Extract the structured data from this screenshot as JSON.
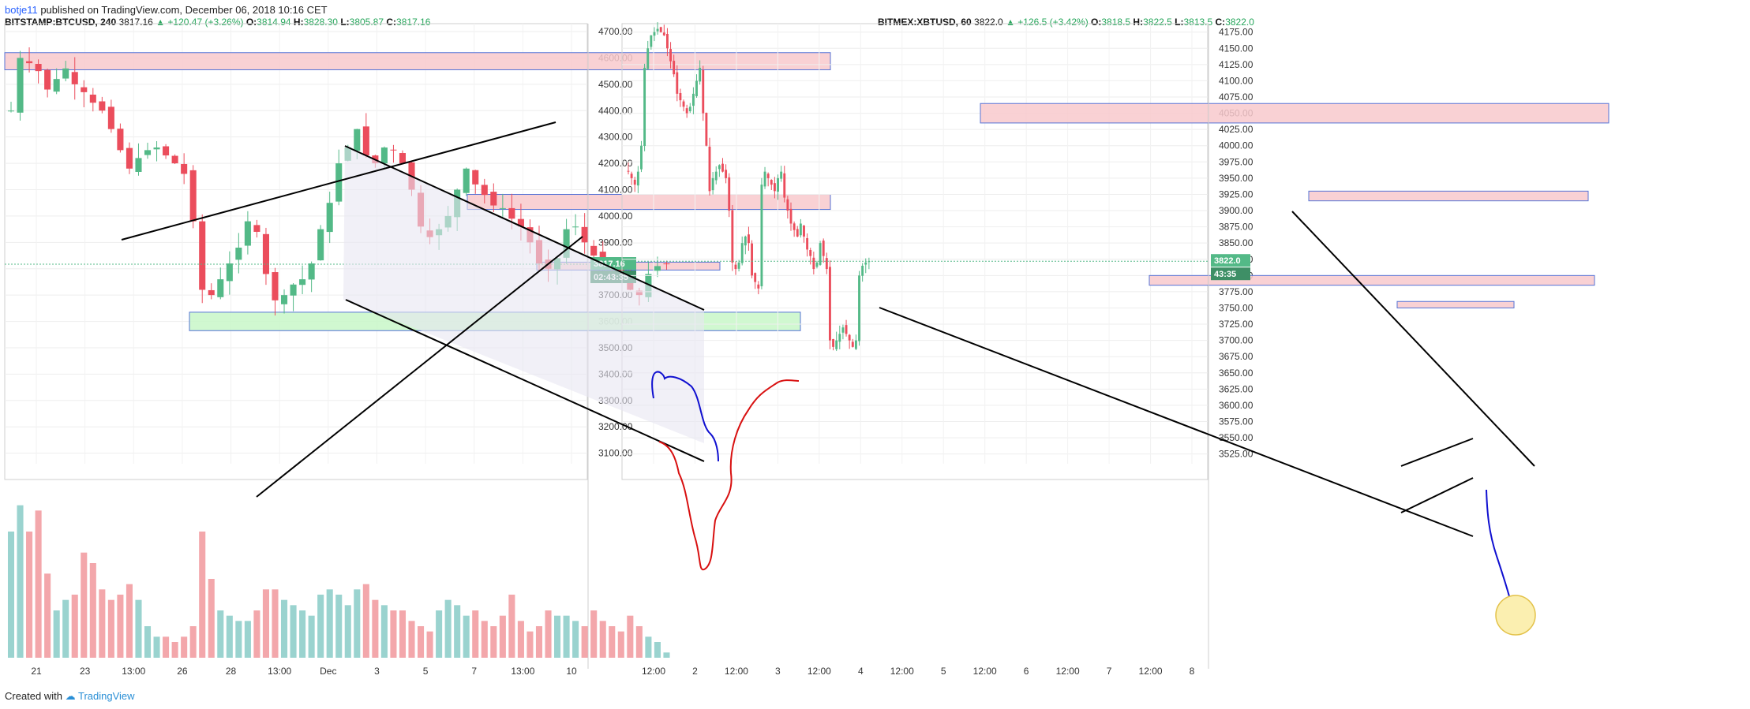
{
  "header": {
    "user": "botje11",
    "published": "published on TradingView.com, December 06, 2018 10:16 CET"
  },
  "footer": {
    "created_with": "Created with",
    "brand": "TradingView"
  },
  "colors": {
    "up": "#53b987",
    "down": "#eb4d5c",
    "zone_red": "#f8c9cc",
    "zone_green": "#c8f7c8",
    "zone_border": "#5573d6",
    "wedge": "#e7e6f2",
    "line_black": "#000000",
    "blue_path": "#1010d0",
    "red_path": "#d81010",
    "highlight": "#fbefb0"
  },
  "chart_data": [
    {
      "type": "candlestick",
      "symbol": "BITSTAMP:BTCUSD, 240",
      "last": "3817.16",
      "change": "▲ +120.47 (+3.26%)",
      "open": "3814.94",
      "high": "3828.30",
      "low": "3805.87",
      "close": "3817.16",
      "last_value": 3817.16,
      "price_tag": "3817.16",
      "time_tag": "02:43:35",
      "y_ticks": [
        "4700.00",
        "4600.00",
        "4500.00",
        "4400.00",
        "4300.00",
        "4200.00",
        "4100.00",
        "4000.00",
        "3900.00",
        "3800.00",
        "3700.00",
        "3600.00",
        "3500.00",
        "3400.00",
        "3300.00",
        "3200.00",
        "3100.00"
      ],
      "x_ticks": [
        "21",
        "23",
        "13:00",
        "26",
        "28",
        "13:00",
        "Dec",
        "3",
        "5",
        "7",
        "13:00",
        "10"
      ],
      "ylim": [
        3060,
        4730
      ],
      "zones": [
        {
          "color": "red",
          "y0": 4555,
          "y1": 4620
        },
        {
          "color": "red",
          "y0": 4025,
          "y1": 4082
        },
        {
          "color": "red",
          "y0": 3795,
          "y1": 3825
        },
        {
          "color": "green",
          "y0": 3565,
          "y1": 3635
        }
      ],
      "trend": [
        4400,
        4600,
        4580,
        4550,
        4480,
        4520,
        4560,
        4500,
        4470,
        4430,
        4400,
        4330,
        4250,
        4180,
        4220,
        4250,
        4260,
        4230,
        4200,
        4160,
        3980,
        3720,
        3700,
        3760,
        3820,
        3880,
        3980,
        3940,
        3780,
        3680,
        3700,
        3740,
        3760,
        3820,
        3950,
        4050,
        4200,
        4260,
        4330,
        4230,
        4200,
        4260,
        4250,
        4200,
        4100,
        3960,
        3920,
        3950,
        4000,
        4100,
        4180,
        4120,
        4080,
        4040,
        4030,
        3990,
        3960,
        3900,
        3820,
        3800,
        3840,
        3950,
        3960,
        3900,
        3850,
        3820,
        3800,
        3760,
        3720,
        3700,
        3780,
        3810,
        3817
      ],
      "volume": [
        240,
        290,
        240,
        280,
        160,
        90,
        110,
        120,
        200,
        180,
        130,
        110,
        120,
        140,
        110,
        60,
        40,
        40,
        30,
        40,
        60,
        240,
        150,
        90,
        80,
        70,
        70,
        90,
        130,
        130,
        110,
        100,
        90,
        80,
        120,
        130,
        120,
        100,
        130,
        140,
        110,
        100,
        90,
        90,
        70,
        60,
        50,
        90,
        110,
        100,
        80,
        90,
        70,
        60,
        80,
        120,
        70,
        50,
        60,
        90,
        80,
        80,
        70,
        60,
        90,
        70,
        60,
        50,
        80,
        60,
        40,
        30,
        10
      ]
    },
    {
      "type": "candlestick",
      "symbol": "BITMEX:XBTUSD, 60",
      "last": "3822.0",
      "change": "▲ +126.5 (+3.42%)",
      "open": "3818.5",
      "high": "3822.5",
      "low": "3813.5",
      "close": "3822.0",
      "last_value": 3822.0,
      "price_tag": "3822.0",
      "time_tag": "43:35",
      "y_ticks": [
        "4175.00",
        "4150.00",
        "4125.00",
        "4100.00",
        "4075.00",
        "4050.00",
        "4025.00",
        "4000.00",
        "3975.00",
        "3950.00",
        "3925.00",
        "3900.00",
        "3875.00",
        "3850.00",
        "3825.00",
        "3800.00",
        "3775.00",
        "3750.00",
        "3725.00",
        "3700.00",
        "3675.00",
        "3650.00",
        "3625.00",
        "3600.00",
        "3575.00",
        "3550.00",
        "3525.00"
      ],
      "x_ticks": [
        "12:00",
        "2",
        "12:00",
        "3",
        "12:00",
        "4",
        "12:00",
        "5",
        "12:00",
        "6",
        "12:00",
        "7",
        "12:00",
        "8"
      ],
      "ylim": [
        3510,
        4188
      ],
      "zones": [
        {
          "color": "red",
          "y0": 4035,
          "y1": 4065
        },
        {
          "color": "red",
          "y0": 3915,
          "y1": 3930
        },
        {
          "color": "red",
          "y0": 3785,
          "y1": 3800
        },
        {
          "color": "red",
          "y0": 3750,
          "y1": 3760
        }
      ],
      "trend": [
        3960,
        3950,
        3940,
        3960,
        4000,
        4120,
        4150,
        4170,
        4175,
        4180,
        4175,
        4170,
        4150,
        4130,
        4110,
        4080,
        4070,
        4060,
        4050,
        4060,
        4080,
        4100,
        4120,
        4050,
        4000,
        3930,
        3950,
        3960,
        3970,
        3960,
        3950,
        3900,
        3820,
        3810,
        3820,
        3850,
        3860,
        3850,
        3800,
        3790,
        3780,
        3940,
        3960,
        3950,
        3940,
        3930,
        3950,
        3960,
        3920,
        3900,
        3880,
        3870,
        3860,
        3880,
        3860,
        3840,
        3830,
        3810,
        3820,
        3850,
        3830,
        3810,
        3700,
        3690,
        3700,
        3710,
        3720,
        3710,
        3700,
        3690,
        3700,
        3800,
        3815,
        3820,
        3822
      ]
    }
  ]
}
